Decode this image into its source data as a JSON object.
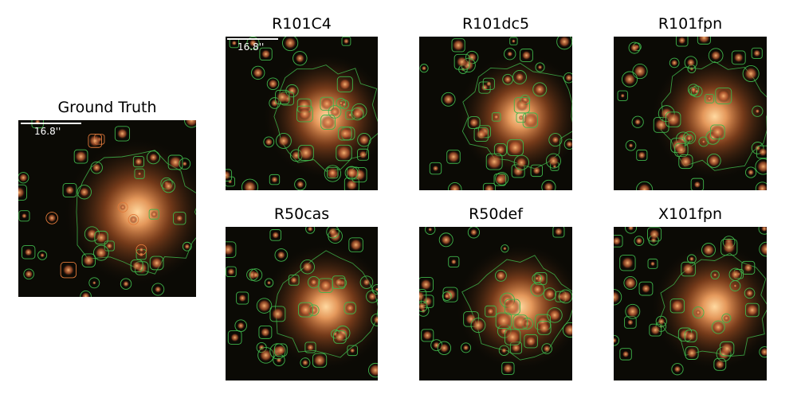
{
  "panels": [
    {
      "id": "gt",
      "title": "Ground Truth",
      "scale_label": "16.8''"
    },
    {
      "id": "r101c4",
      "title": "R101C4",
      "scale_label": "16.8''"
    },
    {
      "id": "r101dc5",
      "title": "R101dc5"
    },
    {
      "id": "r101fpn",
      "title": "R101fpn"
    },
    {
      "id": "r50cas",
      "title": "R50cas"
    },
    {
      "id": "r50def",
      "title": "R50def"
    },
    {
      "id": "x101fpn",
      "title": "X101fpn"
    }
  ],
  "colors": {
    "background": "#0b0a05",
    "galaxy_core": "#ffd9a0",
    "galaxy_halo": "#c8602a",
    "contour_green": "#3fb34a",
    "contour_orange": "#e0793a",
    "scalebar": "#ffffff"
  }
}
